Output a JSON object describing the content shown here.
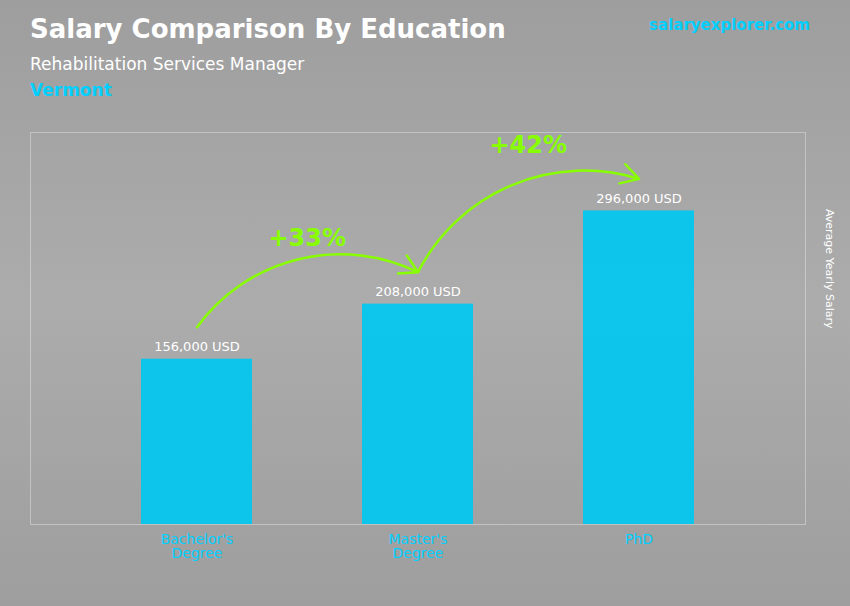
{
  "chart_data": {
    "type": "bar",
    "title": "Salary Comparison By Education",
    "subtitle": "Rehabilitation Services Manager",
    "ylabel": "Average Yearly Salary",
    "categories": [
      "Bachelor's\nDegree",
      "Master's\nDegree",
      "PhD"
    ],
    "values": [
      156000,
      208000,
      296000
    ],
    "value_labels": [
      "156,000 USD",
      "208,000 USD",
      "296,000 USD"
    ],
    "data_labels": true,
    "color": "#00c8f0",
    "ylim": [
      0,
      370000
    ],
    "grid": false,
    "tick_labels": "x",
    "annotations": [
      {
        "text": "Vermont",
        "color": "#00cfff"
      },
      {
        "text": "salaryexplorer.com",
        "color": "#00cfff"
      },
      {
        "text": "+33%",
        "color": "#88ff00",
        "from": "Bachelor's\nDegree",
        "to": "Master's\nDegree"
      },
      {
        "text": "+42%",
        "color": "#88ff00",
        "from": "Master's\nDegree",
        "to": "PhD"
      }
    ]
  }
}
